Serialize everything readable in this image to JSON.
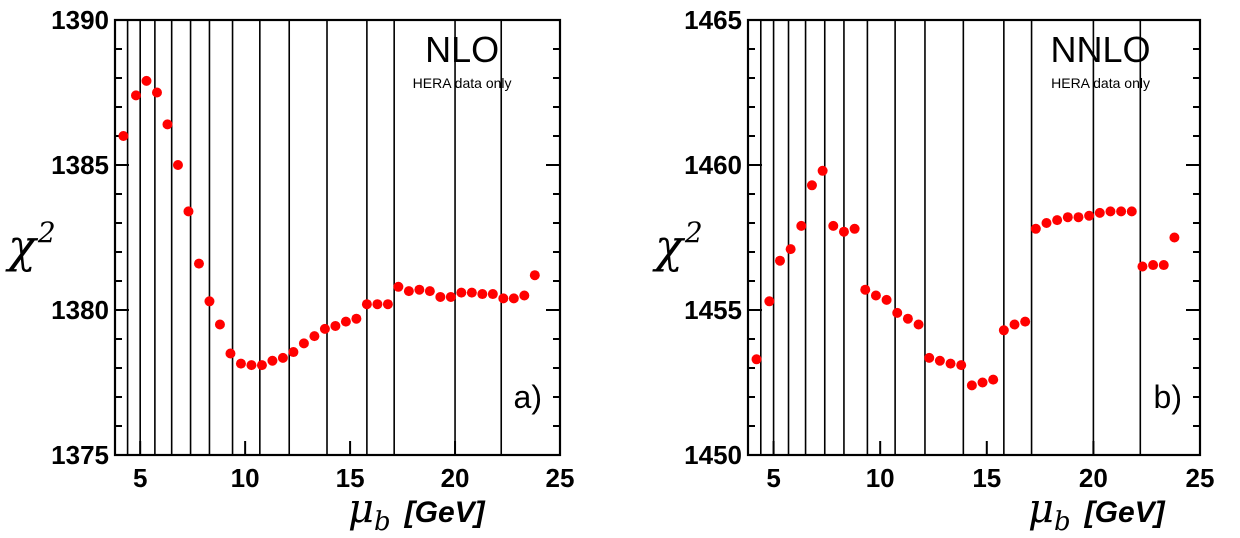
{
  "chart_data": [
    {
      "type": "scatter",
      "title": "NLO",
      "subtitle": "HERA data only",
      "panel_label": "a)",
      "xlabel_symbol": "μ",
      "xlabel_subscript": "b",
      "xlabel_unit": "[GeV]",
      "ylabel_symbol": "χ",
      "ylabel_superscript": "2",
      "xlim": [
        3.8,
        25
      ],
      "ylim": [
        1375,
        1390
      ],
      "xticks": [
        5,
        10,
        15,
        20,
        25
      ],
      "yticks": [
        1375,
        1380,
        1385,
        1390
      ],
      "grid": "vertical lines",
      "vertical_lines": [
        4.4,
        5.0,
        5.7,
        6.5,
        7.4,
        8.3,
        9.4,
        10.7,
        12.1,
        13.9,
        15.8,
        17.1,
        20.0,
        22.2
      ],
      "marker_color": "#ff0000",
      "series": [
        {
          "x": [
            4.2,
            4.8,
            5.3,
            5.8,
            6.3,
            6.8,
            7.3,
            7.8,
            8.3,
            8.8,
            9.3,
            9.8,
            10.3,
            10.8,
            11.3,
            11.8,
            12.3,
            12.8,
            13.3,
            13.8,
            14.3,
            14.8,
            15.3,
            15.8,
            16.3,
            16.8,
            17.3,
            17.8,
            18.3,
            18.8,
            19.3,
            19.8,
            20.3,
            20.8,
            21.3,
            21.8,
            22.3,
            22.8,
            23.3,
            23.8
          ],
          "y": [
            1386.0,
            1387.4,
            1387.9,
            1387.5,
            1386.4,
            1385.0,
            1383.4,
            1381.6,
            1380.3,
            1379.5,
            1378.5,
            1378.15,
            1378.1,
            1378.1,
            1378.25,
            1378.35,
            1378.55,
            1378.85,
            1379.1,
            1379.35,
            1379.45,
            1379.6,
            1379.7,
            1380.2,
            1380.2,
            1380.2,
            1380.8,
            1380.65,
            1380.7,
            1380.65,
            1380.45,
            1380.45,
            1380.6,
            1380.6,
            1380.55,
            1380.55,
            1380.4,
            1380.4,
            1380.5,
            1381.2
          ]
        }
      ]
    },
    {
      "type": "scatter",
      "title": "NNLO",
      "subtitle": "HERA data only",
      "panel_label": "b)",
      "xlabel_symbol": "μ",
      "xlabel_subscript": "b",
      "xlabel_unit": "[GeV]",
      "ylabel_symbol": "χ",
      "ylabel_superscript": "2",
      "xlim": [
        3.8,
        25
      ],
      "ylim": [
        1450,
        1465
      ],
      "xticks": [
        5,
        10,
        15,
        20,
        25
      ],
      "yticks": [
        1450,
        1455,
        1460,
        1465
      ],
      "grid": "vertical lines",
      "vertical_lines": [
        4.4,
        5.0,
        5.7,
        6.5,
        7.4,
        8.3,
        9.4,
        10.7,
        12.1,
        13.9,
        15.8,
        17.1,
        20.0,
        22.2
      ],
      "marker_color": "#ff0000",
      "series": [
        {
          "x": [
            4.2,
            4.8,
            5.3,
            5.8,
            6.3,
            6.8,
            7.3,
            7.8,
            8.3,
            8.8,
            9.3,
            9.8,
            10.3,
            10.8,
            11.3,
            11.8,
            12.3,
            12.8,
            13.3,
            13.8,
            14.3,
            14.8,
            15.3,
            15.8,
            16.3,
            16.8,
            17.3,
            17.8,
            18.3,
            18.8,
            19.3,
            19.8,
            20.3,
            20.8,
            21.3,
            21.8,
            22.3,
            22.8,
            23.3,
            23.8
          ],
          "y": [
            1453.3,
            1455.3,
            1456.7,
            1457.1,
            1457.9,
            1459.3,
            1459.8,
            1457.9,
            1457.7,
            1457.8,
            1455.7,
            1455.5,
            1455.35,
            1454.9,
            1454.7,
            1454.5,
            1453.35,
            1453.25,
            1453.15,
            1453.1,
            1452.4,
            1452.5,
            1452.6,
            1454.3,
            1454.5,
            1454.6,
            1457.8,
            1458.0,
            1458.1,
            1458.2,
            1458.2,
            1458.25,
            1458.35,
            1458.4,
            1458.4,
            1458.4,
            1456.5,
            1456.55,
            1456.55,
            1457.5
          ]
        }
      ]
    }
  ]
}
